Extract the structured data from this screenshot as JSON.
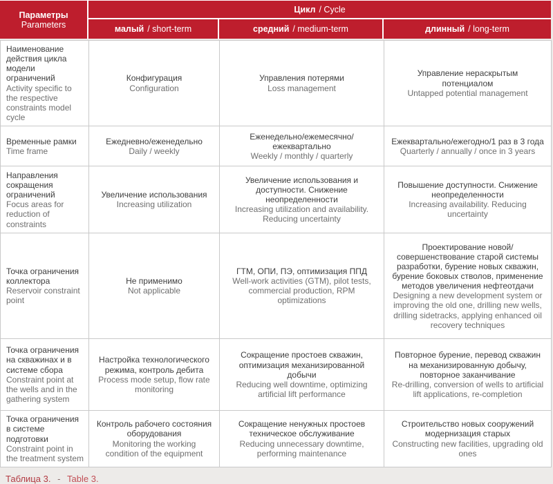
{
  "table": {
    "header": {
      "param_ru": "Параметры",
      "param_en": "Parameters",
      "cycle_ru": "Цикл",
      "cycle_en": "/ Cycle",
      "cols": [
        {
          "ru": "малый",
          "en": "/ short-term"
        },
        {
          "ru": "средний",
          "en": "/ medium-term"
        },
        {
          "ru": "длинный",
          "en": "/ long-term"
        }
      ],
      "bg_color": "#be1e2d"
    },
    "rows": [
      {
        "param_ru": "Наименование действия цикла модели ограничений",
        "param_en": "Activity specific to the respective constraints model cycle",
        "cells": [
          {
            "ru": "Конфигурация",
            "en": "Configuration"
          },
          {
            "ru": "Управления потерями",
            "en": "Loss management"
          },
          {
            "ru": "Управление нераскрытым потенциалом",
            "en": "Untapped potential management"
          }
        ]
      },
      {
        "param_ru": "Временные рамки",
        "param_en": "Time frame",
        "cells": [
          {
            "ru": "Ежедневно/еженедельно",
            "en": "Daily / weekly"
          },
          {
            "ru": "Еженедельно/ежемесячно/ ежеквартально",
            "en": "Weekly / monthly / quarterly"
          },
          {
            "ru": "Ежеквартально/ежегодно/1 раз в 3 года",
            "en": "Quarterly / annually / once in 3 years"
          }
        ]
      },
      {
        "param_ru": "Направления сокращения ограничений",
        "param_en": "Focus areas for reduction of constraints",
        "cells": [
          {
            "ru": "Увеличение использования",
            "en": "Increasing utilization"
          },
          {
            "ru": "Увеличение использования и доступности. Снижение неопределенности",
            "en": "Increasing utilization and availability. Reducing uncertainty"
          },
          {
            "ru": "Повышение доступности. Снижение неопределенности",
            "en": "Increasing availability. Reducing uncertainty"
          }
        ]
      },
      {
        "param_ru": "Точка ограничения коллектора",
        "param_en": "Reservoir constraint point",
        "cells": [
          {
            "ru": "Не применимо",
            "en": "Not applicable"
          },
          {
            "ru": "ГТМ, ОПИ, ПЭ, оптимизация ППД",
            "en": "Well-work activities (GTM), pilot tests, commercial production, RPM optimizations"
          },
          {
            "ru": "Проектирование новой/ совершенствование старой системы разработки, бурение новых скважин, бурение боковых стволов, применение методов увеличения нефтеотдачи",
            "en": "Designing a new development system or improving the old one, drilling new wells, drilling sidetracks, applying enhanced oil recovery techniques"
          }
        ]
      },
      {
        "param_ru": "Точка ограничения на скважинах и в системе сбора",
        "param_en": "Constraint point at the wells and in the gathering system",
        "cells": [
          {
            "ru": "Настройка технологического режима, контроль дебита",
            "en": "Process mode setup, flow rate monitoring"
          },
          {
            "ru": "Сокращение простоев скважин, оптимизация механизированной добычи",
            "en": "Reducing well downtime, optimizing artificial lift performance"
          },
          {
            "ru": "Повторное бурение, перевод скважин на механизированную добычу, повторное заканчивание",
            "en": "Re-drilling, conversion of wells to artificial lift applications, re-completion"
          }
        ]
      },
      {
        "param_ru": "Точка ограничения в системе подготовки",
        "param_en": "Constraint point in the treatment system",
        "cells": [
          {
            "ru": "Контроль рабочего состояния оборудования",
            "en": "Monitoring the working condition of the equipment"
          },
          {
            "ru": "Сокращение ненужных простоев техническое обслуживание",
            "en": "Reducing unnecessary downtime, performing maintenance"
          },
          {
            "ru": "Строительство новых сооружений модернизация старых",
            "en": "Constructing new facilities, upgrading old ones"
          }
        ]
      }
    ],
    "caption": {
      "ru": "Таблица 3.",
      "sep": "-",
      "en": "Table 3."
    }
  }
}
